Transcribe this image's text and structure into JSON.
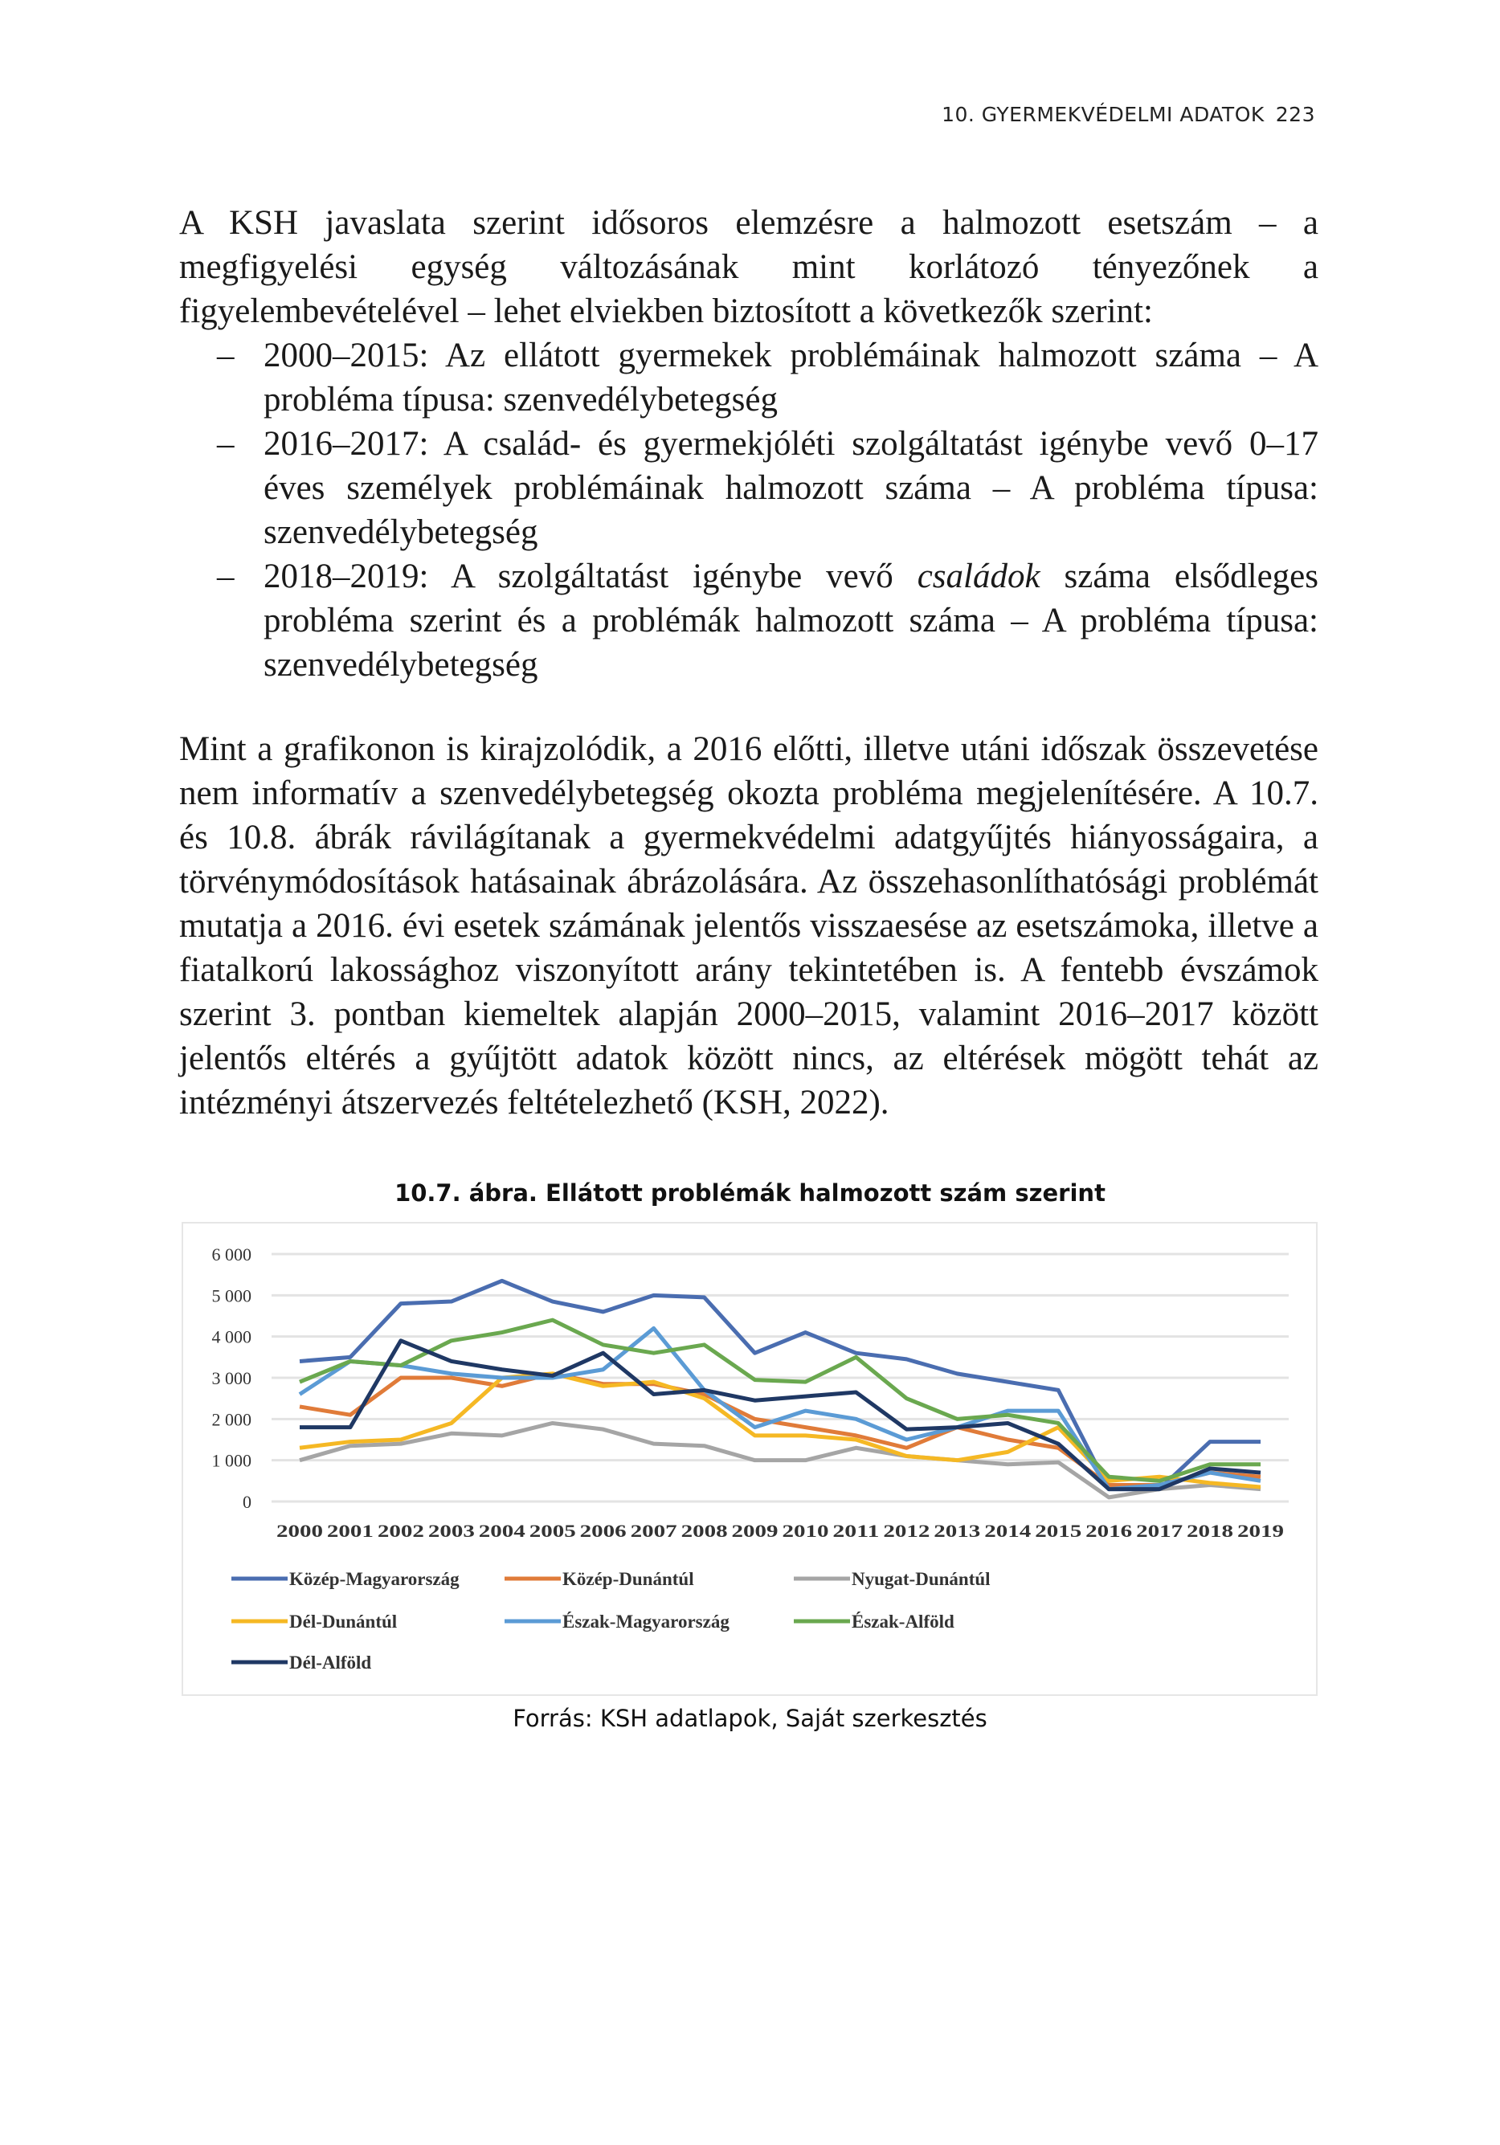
{
  "header": {
    "running_title": "10. GYERMEKVÉDELMI ADATOK",
    "page_number": "223"
  },
  "paragraph1": {
    "intro": "A KSH javaslata szerint idősoros elemzésre a halmozott esetszám – a megfigyelési egység változásának mint korlátozó tényezőnek a figyelembevételével – lehet elviekben biztosított a következők szerint:",
    "items": [
      {
        "pre": "2000–2015: Az ellátott gyermekek problémáinak halmozott száma – A probléma típusa: szenvedélybetegség",
        "em": "",
        "post": ""
      },
      {
        "pre": "2016–2017: A család- és gyermekjóléti szolgáltatást igénybe vevő 0–17 éves személyek problémáinak halmozott száma – A probléma típusa: szenvedélybetegség",
        "em": "",
        "post": ""
      },
      {
        "pre": "2018–2019: A szolgáltatást igénybe vevő ",
        "em": "családok",
        "post": " száma elsődleges probléma szerint és a problémák halmozott száma – A probléma típusa: szenvedélybetegség"
      }
    ]
  },
  "paragraph2": "Mint a grafikonon is kirajzolódik, a 2016 előtti, illetve utáni időszak összevetése nem informatív a szenvedélybetegség okozta probléma megjelenítésére. A 10.7. és 10.8. ábrák rávilágítanak a gyermekvédelmi adatgyűjtés hiányosságaira, a törvénymódosítások hatásainak ábrázolására. Az összehasonlíthatósági problémát mutatja a 2016. évi esetek számának jelentős visszaesése az esetszámoka, illetve a fiatalkorú lakossághoz viszonyított arány tekintetében is. A fentebb évszámok szerint 3. pontban kiemeltek alapján 2000–2015, valamint 2016–2017 között jelentős eltérés a gyűjtött adatok között nincs, az eltérések mögött tehát az intézményi átszervezés feltételezhető (KSH, 2022).",
  "figure": {
    "title": "10.7. ábra. Ellátott problémák halmozott szám szerint",
    "source": "Forrás: KSH adatlapok, Saját szerkesztés"
  },
  "chart_data": {
    "type": "line",
    "title": "10.7. ábra. Ellátott problémák halmozott szám szerint",
    "xlabel": "",
    "ylabel": "",
    "ylim": [
      0,
      6000
    ],
    "yticks": [
      "0",
      "1 000",
      "2 000",
      "3 000",
      "4 000",
      "5 000",
      "6 000"
    ],
    "ytick_values": [
      0,
      1000,
      2000,
      3000,
      4000,
      5000,
      6000
    ],
    "grid": "horizontal",
    "legend_position": "bottom",
    "x": [
      "2000",
      "2001",
      "2002",
      "2003",
      "2004",
      "2005",
      "2006",
      "2007",
      "2008",
      "2009",
      "2010",
      "2011",
      "2012",
      "2013",
      "2014",
      "2015",
      "2016",
      "2017",
      "2018",
      "2019"
    ],
    "series": [
      {
        "name": "Közép-Magyarország",
        "color": "#4a6db0",
        "values": [
          3400,
          3500,
          4800,
          4850,
          5350,
          4850,
          4600,
          5000,
          4950,
          3600,
          4100,
          3600,
          3450,
          3100,
          2900,
          2700,
          300,
          300,
          1450,
          1450
        ]
      },
      {
        "name": "Közép-Dunántúl",
        "color": "#e07b39",
        "values": [
          2300,
          2100,
          3000,
          3000,
          2800,
          3100,
          2850,
          2850,
          2600,
          2000,
          1800,
          1600,
          1300,
          1800,
          1500,
          1300,
          400,
          400,
          700,
          600
        ]
      },
      {
        "name": "Nyugat-Dunántúl",
        "color": "#a5a5a5",
        "values": [
          1000,
          1350,
          1400,
          1650,
          1600,
          1900,
          1750,
          1400,
          1350,
          1000,
          1000,
          1300,
          1100,
          1000,
          900,
          950,
          100,
          300,
          400,
          300
        ]
      },
      {
        "name": "Dél-Dunántúl",
        "color": "#f5b824",
        "values": [
          1300,
          1450,
          1500,
          1900,
          3000,
          3100,
          2800,
          2900,
          2500,
          1600,
          1600,
          1500,
          1100,
          1000,
          1200,
          1800,
          500,
          600,
          450,
          350
        ]
      },
      {
        "name": "Észak-Magyarország",
        "color": "#5b9bd5",
        "values": [
          2600,
          3400,
          3300,
          3100,
          3000,
          3000,
          3200,
          4200,
          2700,
          1800,
          2200,
          2000,
          1500,
          1800,
          2200,
          2200,
          300,
          400,
          700,
          500
        ]
      },
      {
        "name": "Észak-Alföld",
        "color": "#6aa84f",
        "values": [
          2900,
          3400,
          3300,
          3900,
          4100,
          4400,
          3800,
          3600,
          3800,
          2950,
          2900,
          3500,
          2500,
          2000,
          2100,
          1900,
          600,
          500,
          900,
          900
        ]
      },
      {
        "name": "Dél-Alföld",
        "color": "#1f3864",
        "values": [
          1800,
          1800,
          3900,
          3400,
          3200,
          3050,
          3600,
          2600,
          2700,
          2450,
          2550,
          2650,
          1750,
          1800,
          1900,
          1400,
          300,
          300,
          800,
          700
        ]
      }
    ]
  }
}
